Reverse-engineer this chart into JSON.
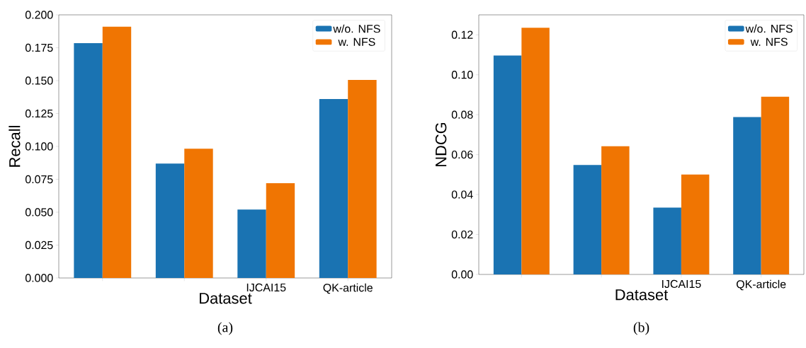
{
  "chart_data": [
    {
      "type": "bar",
      "xlabel": "Dataset",
      "ylabel": "Recall",
      "categories": [
        null,
        null,
        "IJCAI15",
        "QK-article"
      ],
      "series": [
        {
          "name": "w/o. NFS",
          "color": "#1a73b2",
          "values": [
            0.1785,
            0.087,
            0.052,
            0.136
          ]
        },
        {
          "name": "w. NFS",
          "color": "#f07502",
          "values": [
            0.191,
            0.0983,
            0.072,
            0.1506
          ]
        }
      ],
      "ylim": [
        0,
        0.2
      ],
      "yticks": [
        {
          "value": 0,
          "label": "0.000"
        },
        {
          "value": 0.025,
          "label": "0.025"
        },
        {
          "value": 0.05,
          "label": "0.050"
        },
        {
          "value": 0.075,
          "label": "0.075"
        },
        {
          "value": 0.1,
          "label": "0.100"
        },
        {
          "value": 0.125,
          "label": "0.125"
        },
        {
          "value": 0.15,
          "label": "0.150"
        },
        {
          "value": 0.175,
          "label": "0.175"
        },
        {
          "value": 0.2,
          "label": "0.200"
        }
      ],
      "legend": "top right",
      "grid": false,
      "annotations": [
        "(a)"
      ]
    },
    {
      "type": "bar",
      "xlabel": "Dataset",
      "ylabel": "NDCG",
      "categories": [
        null,
        null,
        "IJCAI15",
        "QK-article"
      ],
      "series": [
        {
          "name": "w/o. NFS",
          "color": "#1a73b2",
          "values": [
            0.1096,
            0.0548,
            0.0335,
            0.0788
          ]
        },
        {
          "name": "w. NFS",
          "color": "#f07502",
          "values": [
            0.1235,
            0.0642,
            0.05,
            0.089
          ]
        }
      ],
      "ylim": [
        0,
        0.13
      ],
      "yticks": [
        {
          "value": 0,
          "label": "0.00"
        },
        {
          "value": 0.02,
          "label": "0.02"
        },
        {
          "value": 0.04,
          "label": "0.04"
        },
        {
          "value": 0.06,
          "label": "0.06"
        },
        {
          "value": 0.08,
          "label": "0.08"
        },
        {
          "value": 0.1,
          "label": "0.10"
        },
        {
          "value": 0.12,
          "label": "0.12"
        }
      ],
      "legend": "top right",
      "grid": false,
      "annotations": [
        "(b)"
      ]
    }
  ]
}
